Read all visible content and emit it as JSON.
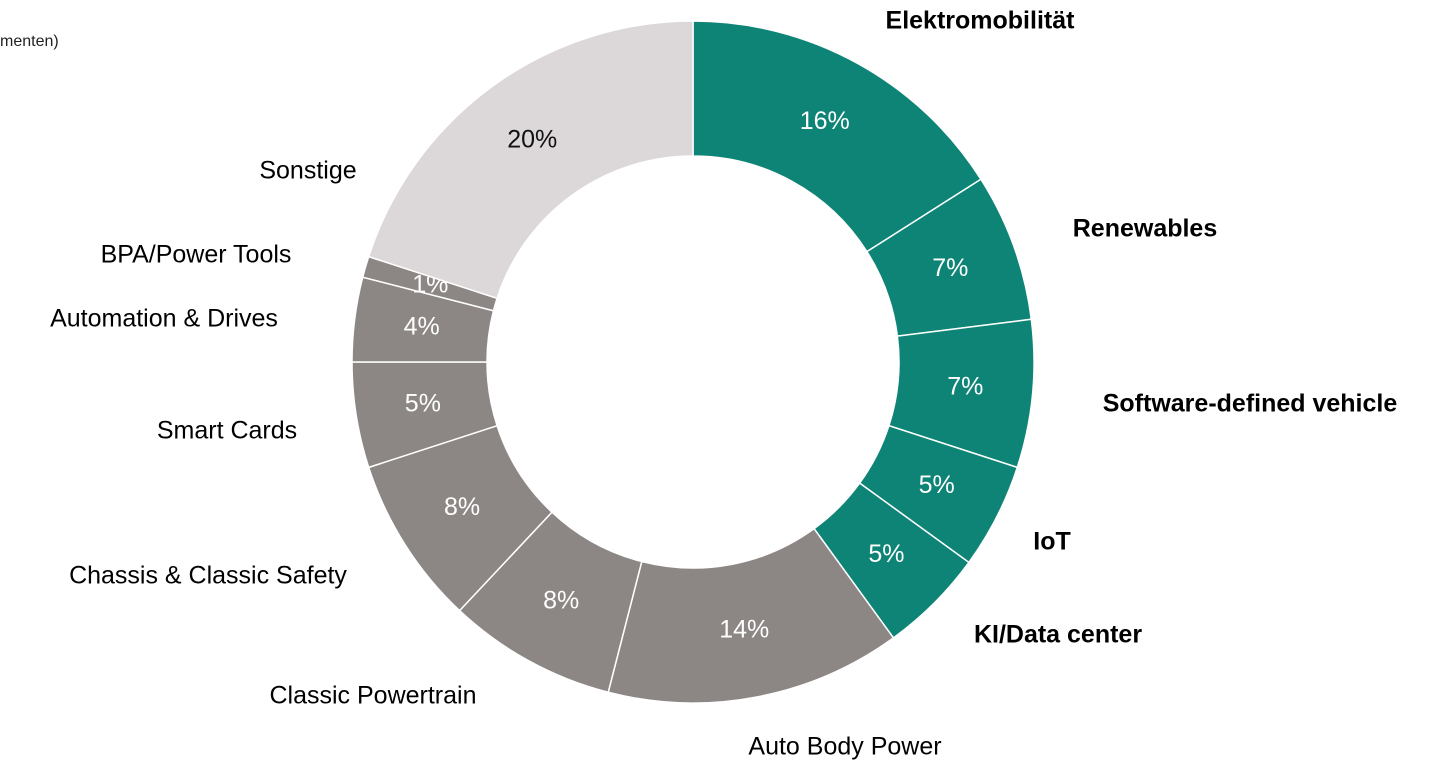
{
  "chart_data": {
    "type": "donut",
    "subtitle": "menten)",
    "categories": [
      "Elektromobilität",
      "Renewables",
      "Software-defined vehicle",
      "IoT",
      "KI/Data center",
      "Auto Body Power",
      "Classic Powertrain",
      "Chassis & Classic Safety",
      "Smart Cards",
      "Automation & Drives",
      "BPA/Power Tools",
      "Sonstige"
    ],
    "values": [
      16,
      7,
      7,
      5,
      5,
      14,
      8,
      8,
      5,
      4,
      1,
      20
    ],
    "value_labels": [
      "16%",
      "7%",
      "7%",
      "5%",
      "5%",
      "14%",
      "8%",
      "8%",
      "5%",
      "4%",
      "1%",
      "20%"
    ],
    "colors": [
      "#0e8476",
      "#0e8476",
      "#0e8476",
      "#0e8476",
      "#0e8476",
      "#8c8784",
      "#8c8784",
      "#8c8784",
      "#8c8784",
      "#8c8784",
      "#8c8784",
      "#dcd7d8"
    ],
    "highlight": [
      true,
      true,
      true,
      true,
      true,
      false,
      false,
      false,
      false,
      false,
      false,
      false
    ]
  }
}
